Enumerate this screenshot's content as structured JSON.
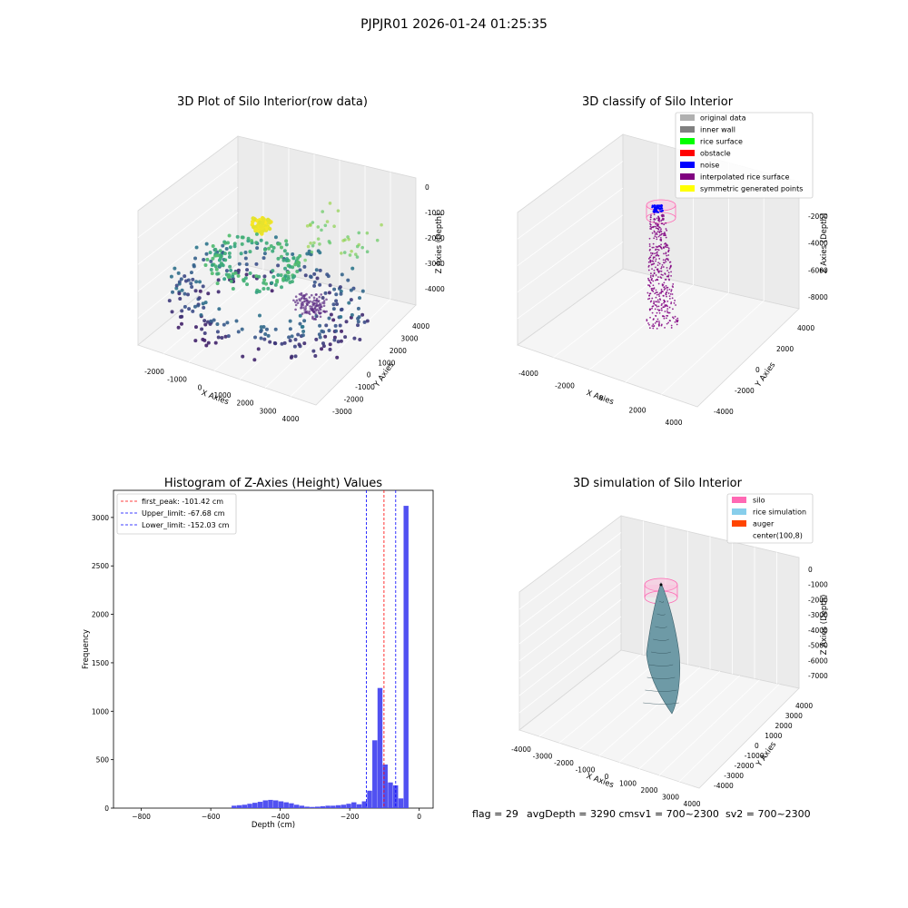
{
  "figure": {
    "suptitle": "PJPJR01 2026-01-24 01:25:35",
    "footer": {
      "flag": "flag = 29",
      "avg": "avgDepth = 3290 cmsv1 = 700~2300",
      "sv2": "sv2 = 700~2300"
    }
  },
  "chart_data": [
    {
      "type": "scatter",
      "title": "3D Plot of Silo Interior(row data)",
      "xlabel": "X Axies",
      "ylabel": "Y Axies",
      "zlabel": "Z Axies (Depth)",
      "xticks": [
        "-2000",
        "-1000",
        "0",
        "1000",
        "2000",
        "3000",
        "4000"
      ],
      "yticks": [
        "-3000",
        "-2000",
        "-1000",
        "0",
        "1000",
        "2000",
        "3000",
        "4000"
      ],
      "zticks": [
        "0",
        "-1000",
        "-2000",
        "-3000",
        "-4000"
      ],
      "xlim": [
        -2500,
        4500
      ],
      "ylim": [
        -3000,
        4500
      ],
      "zlim": [
        -4500,
        0
      ],
      "colormap": "viridis"
    },
    {
      "type": "scatter",
      "title": "3D classify of Silo Interior",
      "xlabel": "X Axies",
      "ylabel": "Y Axies",
      "zlabel": "Z Axies (Depth)",
      "xticks": [
        "-4000",
        "-2000",
        "0",
        "2000",
        "4000"
      ],
      "yticks": [
        "-4000",
        "-2000",
        "0",
        "2000",
        "4000"
      ],
      "zticks": [
        "-2000",
        "-4000",
        "-6000",
        "-8000"
      ],
      "xlim": [
        -4500,
        4500
      ],
      "ylim": [
        -4500,
        4500
      ],
      "zlim": [
        -9000,
        0
      ],
      "legend_position": "top-right",
      "legend": [
        {
          "label": "original data",
          "color": "#b0b0b0"
        },
        {
          "label": "inner wall",
          "color": "#808080"
        },
        {
          "label": "rice surface",
          "color": "#00ff00"
        },
        {
          "label": "obstacle",
          "color": "#ff0000"
        },
        {
          "label": "noise",
          "color": "#0000ff"
        },
        {
          "label": "interpolated rice surface",
          "color": "#800080"
        },
        {
          "label": "symmetric generated points",
          "color": "#ffff00"
        }
      ]
    },
    {
      "type": "bar",
      "title": "Histogram of Z-Axies (Height) Values",
      "xlabel": "Depth (cm)",
      "ylabel": "Frequency",
      "xlim": [
        -880,
        40
      ],
      "ylim": [
        0,
        3280
      ],
      "xticks": [
        -800,
        -600,
        -400,
        -200,
        0
      ],
      "yticks": [
        0,
        500,
        1000,
        1500,
        2000,
        2500,
        3000
      ],
      "bar_color": "#4848f0",
      "bin_width": 15,
      "bins": [
        {
          "x": -540,
          "h": 25
        },
        {
          "x": -525,
          "h": 30
        },
        {
          "x": -510,
          "h": 35
        },
        {
          "x": -495,
          "h": 45
        },
        {
          "x": -480,
          "h": 55
        },
        {
          "x": -465,
          "h": 65
        },
        {
          "x": -450,
          "h": 80
        },
        {
          "x": -435,
          "h": 85
        },
        {
          "x": -420,
          "h": 80
        },
        {
          "x": -405,
          "h": 70
        },
        {
          "x": -390,
          "h": 60
        },
        {
          "x": -375,
          "h": 50
        },
        {
          "x": -360,
          "h": 35
        },
        {
          "x": -345,
          "h": 25
        },
        {
          "x": -330,
          "h": 15
        },
        {
          "x": -315,
          "h": 12
        },
        {
          "x": -300,
          "h": 15
        },
        {
          "x": -285,
          "h": 20
        },
        {
          "x": -270,
          "h": 25
        },
        {
          "x": -255,
          "h": 25
        },
        {
          "x": -240,
          "h": 30
        },
        {
          "x": -225,
          "h": 35
        },
        {
          "x": -210,
          "h": 45
        },
        {
          "x": -195,
          "h": 60
        },
        {
          "x": -180,
          "h": 40
        },
        {
          "x": -165,
          "h": 70
        },
        {
          "x": -150,
          "h": 180
        },
        {
          "x": -135,
          "h": 700
        },
        {
          "x": -120,
          "h": 1240
        },
        {
          "x": -105,
          "h": 450
        },
        {
          "x": -90,
          "h": 265
        },
        {
          "x": -75,
          "h": 235
        },
        {
          "x": -60,
          "h": 100
        },
        {
          "x": -45,
          "h": 3120
        }
      ],
      "vlines": [
        {
          "label": "first_peak: -101.42 cm",
          "x": -101.42,
          "color": "#ff0000"
        },
        {
          "label": "Upper_limit: -67.68 cm",
          "x": -67.68,
          "color": "#0000ff"
        },
        {
          "label": "Lower_limit: -152.03 cm",
          "x": -152.03,
          "color": "#0000ff"
        }
      ],
      "legend_position": "top-left"
    },
    {
      "type": "area",
      "title": "3D simulation of Silo Interior",
      "xlabel": "X Axies",
      "ylabel": "Y Axies",
      "zlabel": "Z Axies (Depth)",
      "xticks": [
        "-4000",
        "-3000",
        "-2000",
        "-1000",
        "0",
        "1000",
        "2000",
        "3000",
        "4000"
      ],
      "yticks": [
        "-4000",
        "-3000",
        "-2000",
        "-1000",
        "0",
        "1000",
        "2000",
        "3000",
        "4000"
      ],
      "zticks": [
        "0",
        "-1000",
        "-2000",
        "-3000",
        "-4000",
        "-5000",
        "-6000",
        "-7000"
      ],
      "xlim": [
        -4500,
        4500
      ],
      "ylim": [
        -4500,
        4500
      ],
      "zlim": [
        -7500,
        0
      ],
      "legend_position": "top-right",
      "legend": [
        {
          "label": "silo",
          "color": "#ff69b4"
        },
        {
          "label": "rice simulation",
          "color": "#87ceeb"
        },
        {
          "label": "auger",
          "color": "#ff4500"
        },
        {
          "label": "center(100,8)",
          "color": ""
        }
      ]
    }
  ]
}
